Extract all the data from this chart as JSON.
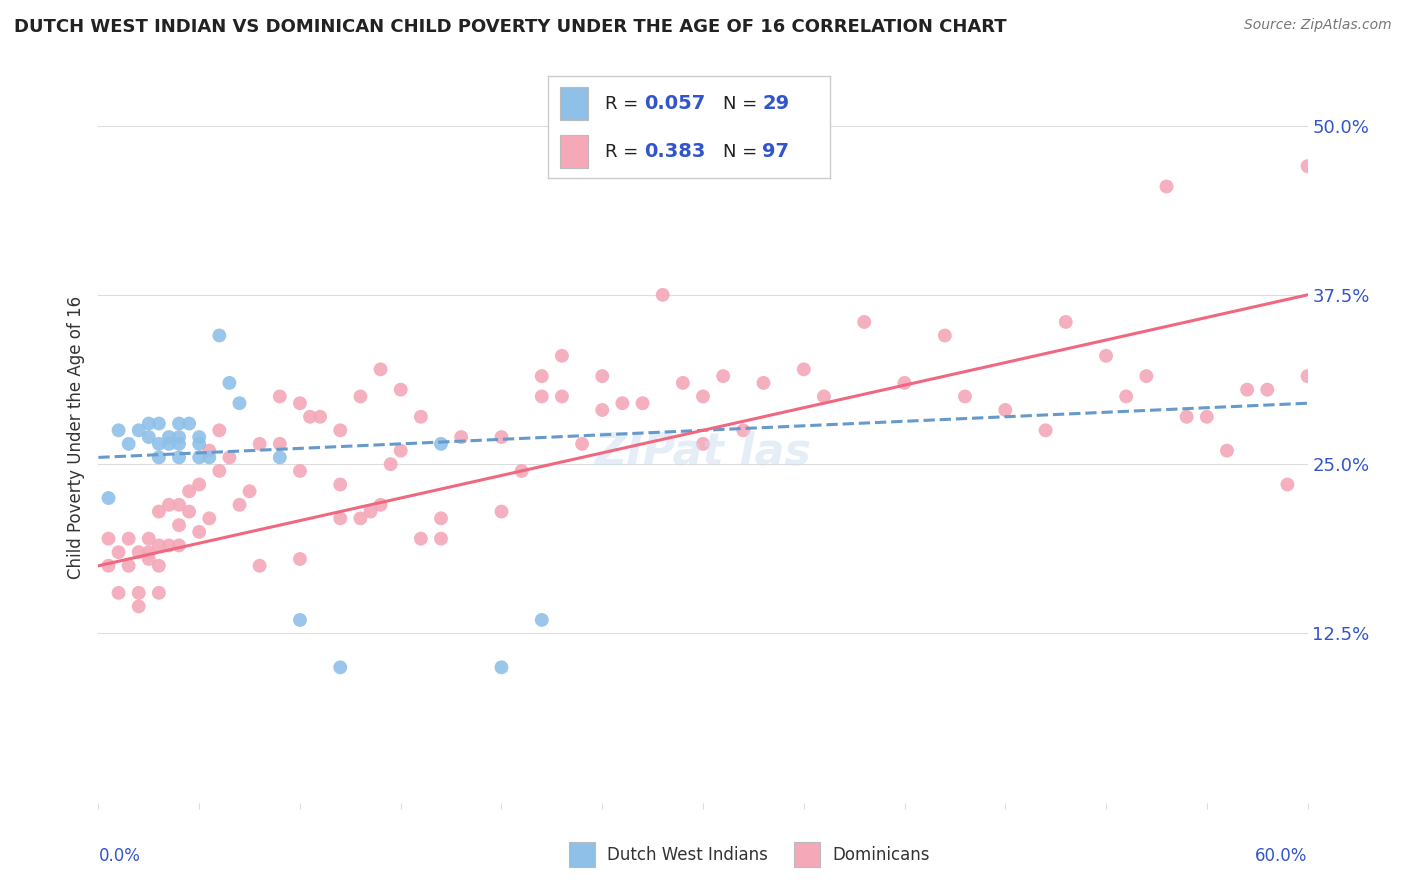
{
  "title": "DUTCH WEST INDIAN VS DOMINICAN CHILD POVERTY UNDER THE AGE OF 16 CORRELATION CHART",
  "source": "Source: ZipAtlas.com",
  "ylabel": "Child Poverty Under the Age of 16",
  "ytick_labels": [
    "12.5%",
    "25.0%",
    "37.5%",
    "50.0%"
  ],
  "ytick_values": [
    0.125,
    0.25,
    0.375,
    0.5
  ],
  "xlim": [
    0.0,
    0.6
  ],
  "ylim": [
    0.0,
    0.54
  ],
  "blue_color": "#8EC0E8",
  "pink_color": "#F4A8B8",
  "blue_line_color": "#6699CC",
  "pink_line_color": "#F06880",
  "r_value_color": "#3355CC",
  "background_color": "#FFFFFF",
  "grid_color": "#DDDDDD",
  "dwi_x": [
    0.005,
    0.01,
    0.015,
    0.02,
    0.025,
    0.025,
    0.03,
    0.03,
    0.03,
    0.035,
    0.035,
    0.04,
    0.04,
    0.04,
    0.04,
    0.045,
    0.05,
    0.05,
    0.05,
    0.055,
    0.06,
    0.065,
    0.07,
    0.09,
    0.1,
    0.12,
    0.17,
    0.2,
    0.22
  ],
  "dwi_y": [
    0.225,
    0.275,
    0.265,
    0.275,
    0.27,
    0.28,
    0.255,
    0.265,
    0.28,
    0.265,
    0.27,
    0.255,
    0.265,
    0.27,
    0.28,
    0.28,
    0.255,
    0.265,
    0.27,
    0.255,
    0.345,
    0.31,
    0.295,
    0.255,
    0.135,
    0.1,
    0.265,
    0.1,
    0.135
  ],
  "dom_x": [
    0.005,
    0.005,
    0.01,
    0.01,
    0.015,
    0.015,
    0.02,
    0.02,
    0.02,
    0.025,
    0.025,
    0.025,
    0.03,
    0.03,
    0.03,
    0.03,
    0.035,
    0.035,
    0.04,
    0.04,
    0.04,
    0.045,
    0.045,
    0.05,
    0.05,
    0.055,
    0.055,
    0.06,
    0.06,
    0.065,
    0.07,
    0.075,
    0.08,
    0.08,
    0.09,
    0.09,
    0.1,
    0.1,
    0.1,
    0.105,
    0.11,
    0.12,
    0.12,
    0.12,
    0.13,
    0.13,
    0.135,
    0.14,
    0.14,
    0.145,
    0.15,
    0.15,
    0.16,
    0.16,
    0.17,
    0.17,
    0.18,
    0.2,
    0.2,
    0.21,
    0.22,
    0.22,
    0.23,
    0.23,
    0.24,
    0.25,
    0.25,
    0.26,
    0.27,
    0.28,
    0.29,
    0.3,
    0.3,
    0.31,
    0.32,
    0.33,
    0.35,
    0.36,
    0.38,
    0.4,
    0.42,
    0.43,
    0.45,
    0.47,
    0.48,
    0.5,
    0.51,
    0.52,
    0.53,
    0.54,
    0.55,
    0.56,
    0.57,
    0.58,
    0.59,
    0.6,
    0.6
  ],
  "dom_y": [
    0.175,
    0.195,
    0.155,
    0.185,
    0.175,
    0.195,
    0.145,
    0.155,
    0.185,
    0.18,
    0.185,
    0.195,
    0.155,
    0.175,
    0.19,
    0.215,
    0.19,
    0.22,
    0.19,
    0.205,
    0.22,
    0.215,
    0.23,
    0.2,
    0.235,
    0.21,
    0.26,
    0.245,
    0.275,
    0.255,
    0.22,
    0.23,
    0.175,
    0.265,
    0.265,
    0.3,
    0.18,
    0.245,
    0.295,
    0.285,
    0.285,
    0.21,
    0.235,
    0.275,
    0.21,
    0.3,
    0.215,
    0.22,
    0.32,
    0.25,
    0.26,
    0.305,
    0.195,
    0.285,
    0.195,
    0.21,
    0.27,
    0.215,
    0.27,
    0.245,
    0.3,
    0.315,
    0.3,
    0.33,
    0.265,
    0.29,
    0.315,
    0.295,
    0.295,
    0.375,
    0.31,
    0.265,
    0.3,
    0.315,
    0.275,
    0.31,
    0.32,
    0.3,
    0.355,
    0.31,
    0.345,
    0.3,
    0.29,
    0.275,
    0.355,
    0.33,
    0.3,
    0.315,
    0.455,
    0.285,
    0.285,
    0.26,
    0.305,
    0.305,
    0.235,
    0.47,
    0.315
  ]
}
